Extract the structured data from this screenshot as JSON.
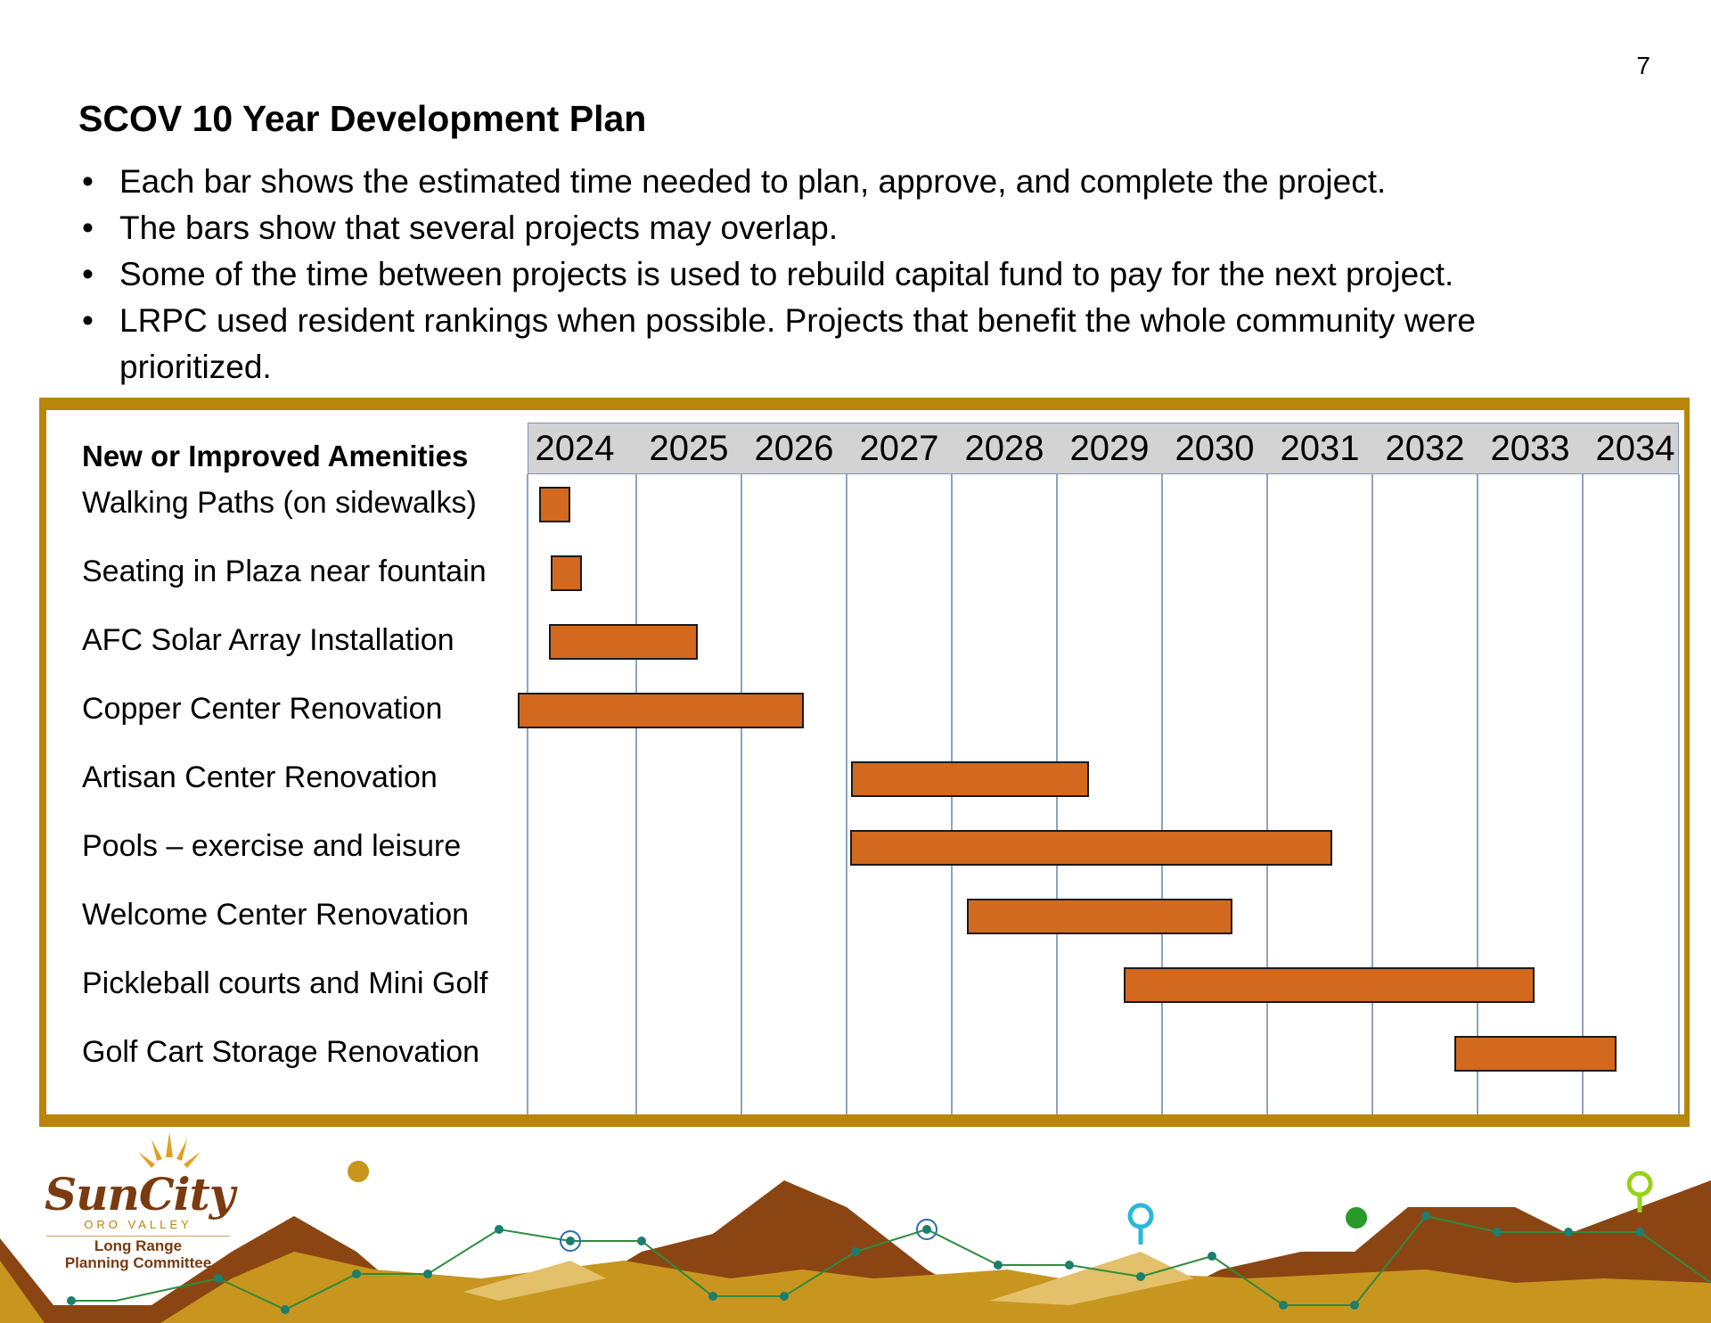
{
  "page_number": "7",
  "title": "SCOV 10 Year Development Plan",
  "bullets": [
    "Each bar shows the estimated time needed to plan, approve, and complete the project.",
    "The bars show that several projects may overlap.",
    "Some of the time between projects is used to rebuild capital fund to pay for the next project.",
    "LRPC used resident rankings when possible. Projects that benefit the whole community were prioritized."
  ],
  "bullet_marker": "•",
  "gantt": {
    "header": "New or Improved Amenities",
    "years": [
      "2024",
      "2025",
      "2026",
      "2027",
      "2028",
      "2029",
      "2030",
      "2031",
      "2032",
      "2033",
      "2034"
    ],
    "rows": [
      {
        "label": "Walking Paths (on sidewalks)",
        "start": 2024.55,
        "end": 2024.85
      },
      {
        "label": "Seating in Plaza near fountain",
        "start": 2024.66,
        "end": 2024.96
      },
      {
        "label": "AFC Solar Array Installation",
        "start": 2024.64,
        "end": 2026.06
      },
      {
        "label": "Copper Center Renovation",
        "start": 2024.35,
        "end": 2027.07
      },
      {
        "label": "Artisan Center Renovation",
        "start": 2027.52,
        "end": 2029.78
      },
      {
        "label": "Pools – exercise and leisure",
        "start": 2027.51,
        "end": 2032.09
      },
      {
        "label": "Welcome Center Renovation",
        "start": 2028.62,
        "end": 2031.14
      },
      {
        "label": "Pickleball courts and Mini Golf",
        "start": 2030.11,
        "end": 2034.02
      },
      {
        "label": "Golf Cart Storage Renovation",
        "start": 2033.25,
        "end": 2034.8
      }
    ],
    "bar_color": "#d2691e",
    "frame_color": "#b8860b"
  },
  "logo": {
    "brand": "SunCity",
    "location": "ORO VALLEY",
    "committee_line1": "Long Range",
    "committee_line2": "Planning Committee"
  },
  "colors": {
    "mountain_dark": "#8b4513",
    "mountain_gold": "#c8961e",
    "mountain_light": "#e3c06a",
    "trail_line": "#2e8b3e",
    "trail_dot": "#1a7f6e"
  }
}
